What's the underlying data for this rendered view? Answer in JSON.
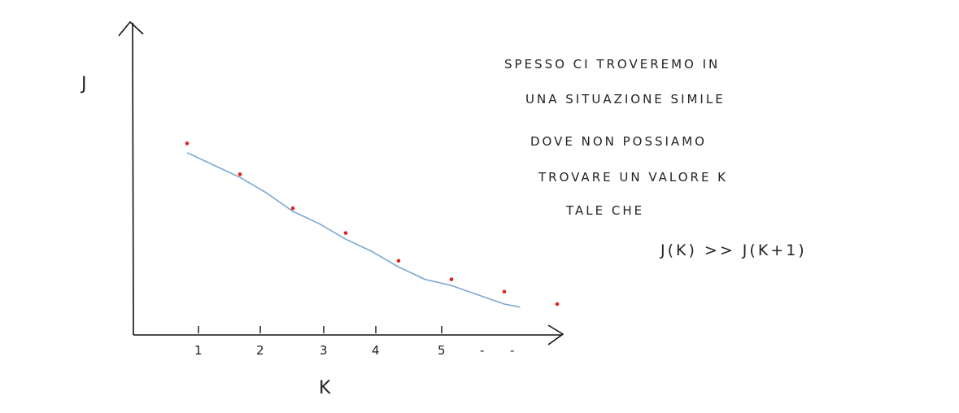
{
  "chart_data": {
    "type": "scatter",
    "xlabel": "K",
    "ylabel": "J",
    "x_tick_labels": [
      "1",
      "2",
      "3",
      "4",
      "5",
      "-",
      "-"
    ],
    "points": [
      {
        "x": 1,
        "y": 0.62
      },
      {
        "x": 2,
        "y": 0.52
      },
      {
        "x": 3,
        "y": 0.41
      },
      {
        "x": 4,
        "y": 0.33
      },
      {
        "x": 5,
        "y": 0.24
      },
      {
        "x": 6,
        "y": 0.18
      },
      {
        "x": 7,
        "y": 0.14
      },
      {
        "x": 8,
        "y": 0.1
      }
    ],
    "trend_line": [
      {
        "x": 1.0,
        "y": 0.59
      },
      {
        "x": 1.5,
        "y": 0.55
      },
      {
        "x": 2.0,
        "y": 0.51
      },
      {
        "x": 2.5,
        "y": 0.46
      },
      {
        "x": 3.0,
        "y": 0.4
      },
      {
        "x": 3.5,
        "y": 0.36
      },
      {
        "x": 4.0,
        "y": 0.31
      },
      {
        "x": 4.5,
        "y": 0.27
      },
      {
        "x": 5.0,
        "y": 0.22
      },
      {
        "x": 5.5,
        "y": 0.18
      },
      {
        "x": 6.0,
        "y": 0.16
      },
      {
        "x": 6.5,
        "y": 0.13
      },
      {
        "x": 7.0,
        "y": 0.1
      },
      {
        "x": 7.3,
        "y": 0.09
      }
    ],
    "xlim": [
      0,
      8
    ],
    "ylim": [
      0,
      1
    ],
    "point_color": "#e0211d",
    "line_color": "#7aa7d2",
    "axis_color": "#111111"
  },
  "note": {
    "lines": [
      "SPESSO CI TROVEREMO IN",
      "UNA SITUAZIONE SIMILE",
      "DOVE NON POSSIAMO",
      "TROVARE UN VALORE K",
      "TALE CHE",
      "J(K) >> J(K+1)"
    ]
  }
}
